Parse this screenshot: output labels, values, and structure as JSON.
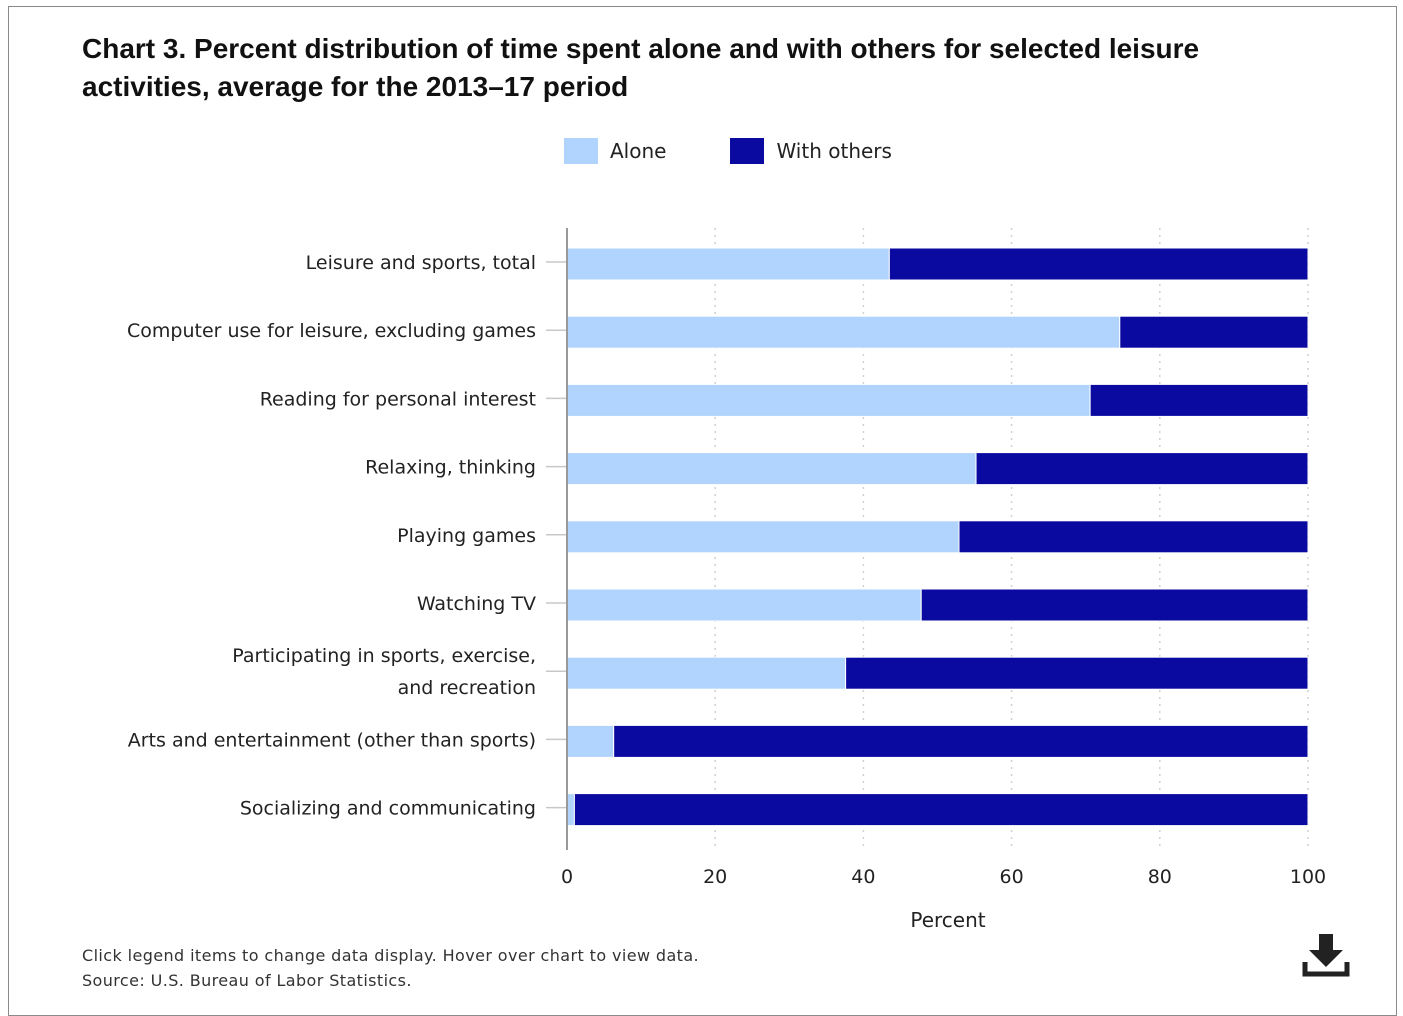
{
  "title": "Chart 3. Percent distribution of time spent alone and with others for selected leisure activities, average for the 2013–17 period",
  "legend": {
    "alone_label": "Alone",
    "others_label": "With others"
  },
  "colors": {
    "alone": "#b0d4fe",
    "with_others": "#0a0aa0",
    "axis": "#999999",
    "grid": "#d0d0d0"
  },
  "footnote": {
    "line1": "Click legend items to change data display. Hover over chart to view data.",
    "line2": "Source: U.S. Bureau of Labor Statistics."
  },
  "download_icon": "download-icon",
  "chart_data": {
    "type": "bar",
    "orientation": "horizontal",
    "stacked": true,
    "categories": [
      "Leisure and sports, total",
      "Computer use for leisure, excluding games",
      "Reading for personal interest",
      "Relaxing, thinking",
      "Playing games",
      "Watching TV",
      "Participating in sports, exercise, and recreation",
      "Arts and entertainment (other than sports)",
      "Socializing and communicating"
    ],
    "series": [
      {
        "name": "Alone",
        "values": [
          43.5,
          74.6,
          70.6,
          55.2,
          52.9,
          47.8,
          37.6,
          6.3,
          1.0
        ]
      },
      {
        "name": "With others",
        "values": [
          56.5,
          25.4,
          29.4,
          44.8,
          47.1,
          52.2,
          62.4,
          93.7,
          99.0
        ]
      }
    ],
    "xlabel": "Percent",
    "ylabel": "",
    "xlim": [
      0,
      100
    ],
    "xticks": [
      "0",
      "20",
      "40",
      "60",
      "80",
      "100"
    ],
    "grid": "vertical dotted",
    "legend_position": "top"
  }
}
